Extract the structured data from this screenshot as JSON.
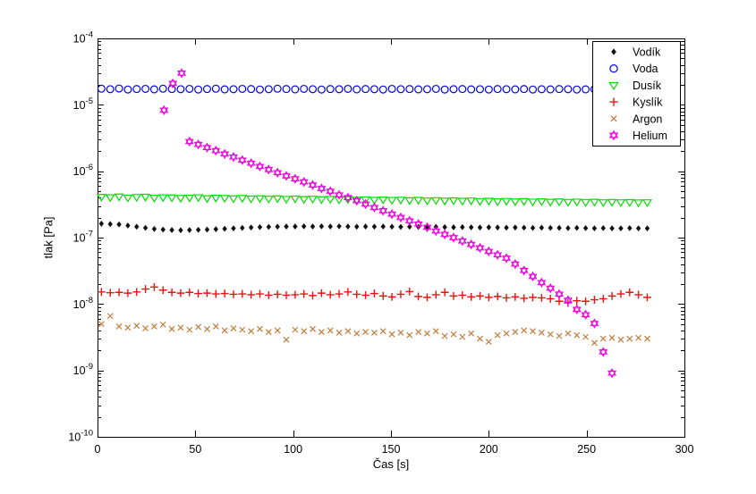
{
  "figure": {
    "background": "#FFFFFF",
    "xlabel": "Čas [s]",
    "ylabel": "tlak [Pa]"
  },
  "chart_data": {
    "type": "scatter",
    "title": "",
    "xlabel": "Čas [s]",
    "ylabel": "tlak [Pa]",
    "grid": false,
    "x_axis": {
      "min": 0,
      "max": 300,
      "ticks": [
        0,
        50,
        100,
        150,
        200,
        250,
        300
      ]
    },
    "y_axis": {
      "scale": "log",
      "min_exp": -10,
      "max_exp": -4,
      "tick_exponents": [
        -4,
        -5,
        -6,
        -7,
        -8,
        -9,
        -10
      ],
      "unit": "Pa"
    },
    "legend": {
      "position": "top-right",
      "border_color": "#000000",
      "background": "#FFFFFF"
    },
    "shared_x": [
      2,
      6.5,
      11,
      15.5,
      20,
      24.5,
      29,
      33.5,
      38,
      42.5,
      47,
      51.5,
      56,
      60.5,
      65,
      69.5,
      74,
      78.5,
      83,
      87.5,
      92,
      96.5,
      101,
      105.5,
      110,
      114.5,
      119,
      123.5,
      128,
      132.5,
      137,
      141.5,
      146,
      150.5,
      155,
      159.5,
      164,
      168.5,
      173,
      177.5,
      182,
      186.5,
      191,
      195.5,
      200,
      204.5,
      209,
      213.5,
      218,
      222.5,
      227,
      231.5,
      236,
      240.5,
      245,
      249.5,
      254,
      258.5,
      263,
      267.5,
      272,
      276.5,
      281
    ],
    "series": [
      {
        "name": "Vodík",
        "marker": "diamond-filled",
        "color": "#111111",
        "x_ref": "shared_x",
        "y": [
          1.62e-07,
          1.6e-07,
          1.58e-07,
          1.52e-07,
          1.46e-07,
          1.4e-07,
          1.35e-07,
          1.32e-07,
          1.3e-07,
          1.29e-07,
          1.3e-07,
          1.31e-07,
          1.32e-07,
          1.34e-07,
          1.36e-07,
          1.38e-07,
          1.4e-07,
          1.42e-07,
          1.44e-07,
          1.45e-07,
          1.46e-07,
          1.47e-07,
          1.47e-07,
          1.48e-07,
          1.47e-07,
          1.48e-07,
          1.47e-07,
          1.48e-07,
          1.47e-07,
          1.46e-07,
          1.47e-07,
          1.46e-07,
          1.47e-07,
          1.46e-07,
          1.45e-07,
          1.46e-07,
          1.45e-07,
          1.44e-07,
          1.45e-07,
          1.44e-07,
          1.43e-07,
          1.44e-07,
          1.43e-07,
          1.42e-07,
          1.43e-07,
          1.42e-07,
          1.41e-07,
          1.42e-07,
          1.41e-07,
          1.4e-07,
          1.41e-07,
          1.4e-07,
          1.4e-07,
          1.39e-07,
          1.4e-07,
          1.39e-07,
          1.38e-07,
          1.39e-07,
          1.38e-07,
          1.38e-07,
          1.39e-07,
          1.38e-07,
          1.38e-07
        ]
      },
      {
        "name": "Voda",
        "marker": "circle",
        "color": "#0000EE",
        "x_ref": "shared_x",
        "y": [
          1.75e-05,
          1.72e-05,
          1.76e-05,
          1.7e-05,
          1.73e-05,
          1.74e-05,
          1.71e-05,
          1.75e-05,
          1.73e-05,
          1.72e-05,
          1.74e-05,
          1.7e-05,
          1.73e-05,
          1.75e-05,
          1.71e-05,
          1.72e-05,
          1.74e-05,
          1.73e-05,
          1.7e-05,
          1.72e-05,
          1.75e-05,
          1.73e-05,
          1.71e-05,
          1.74e-05,
          1.72e-05,
          1.7e-05,
          1.73e-05,
          1.72e-05,
          1.74e-05,
          1.71e-05,
          1.73e-05,
          1.72e-05,
          1.7e-05,
          1.74e-05,
          1.72e-05,
          1.73e-05,
          1.71e-05,
          1.72e-05,
          1.74e-05,
          1.7e-05,
          1.72e-05,
          1.73e-05,
          1.71e-05,
          1.72e-05,
          1.7e-05,
          1.73e-05,
          1.72e-05,
          1.71e-05,
          1.73e-05,
          1.7e-05,
          1.72e-05,
          1.71e-05,
          1.73e-05,
          1.72e-05,
          1.7e-05,
          1.71e-05,
          1.72e-05,
          1.7e-05,
          1.71e-05,
          1.72e-05,
          1.7e-05,
          1.71e-05,
          1.7e-05
        ]
      },
      {
        "name": "Dusík",
        "marker": "triangle-down",
        "color": "#00DD00",
        "x_ref": "shared_x",
        "y": [
          4.1e-07,
          4.05e-07,
          4.15e-07,
          4e-07,
          4.08e-07,
          4.12e-07,
          3.98e-07,
          4.05e-07,
          4.02e-07,
          3.95e-07,
          4e-07,
          4.05e-07,
          3.92e-07,
          3.98e-07,
          3.95e-07,
          3.9e-07,
          3.95e-07,
          3.88e-07,
          3.92e-07,
          3.85e-07,
          3.9e-07,
          3.82e-07,
          3.88e-07,
          3.8e-07,
          3.85e-07,
          3.78e-07,
          3.82e-07,
          3.75e-07,
          3.8e-07,
          3.72e-07,
          3.76e-07,
          3.7e-07,
          3.74e-07,
          3.68e-07,
          3.72e-07,
          3.65e-07,
          3.7e-07,
          3.62e-07,
          3.66e-07,
          3.6e-07,
          3.64e-07,
          3.58e-07,
          3.62e-07,
          3.55e-07,
          3.58e-07,
          3.52e-07,
          3.56e-07,
          3.5e-07,
          3.54e-07,
          3.48e-07,
          3.52e-07,
          3.46e-07,
          3.5e-07,
          3.44e-07,
          3.48e-07,
          3.42e-07,
          3.46e-07,
          3.4e-07,
          3.44e-07,
          3.4e-07,
          3.42e-07,
          3.38e-07,
          3.4e-07
        ]
      },
      {
        "name": "Kyslík",
        "marker": "plus",
        "color": "#EE1111",
        "x_ref": "shared_x",
        "y": [
          1.52e-08,
          1.48e-08,
          1.5e-08,
          1.46e-08,
          1.52e-08,
          1.68e-08,
          1.8e-08,
          1.62e-08,
          1.5e-08,
          1.46e-08,
          1.5e-08,
          1.44e-08,
          1.46e-08,
          1.42e-08,
          1.44e-08,
          1.4e-08,
          1.42e-08,
          1.38e-08,
          1.42e-08,
          1.36e-08,
          1.4e-08,
          1.36e-08,
          1.38e-08,
          1.42e-08,
          1.34e-08,
          1.46e-08,
          1.38e-08,
          1.42e-08,
          1.52e-08,
          1.4e-08,
          1.36e-08,
          1.44e-08,
          1.32e-08,
          1.28e-08,
          1.4e-08,
          1.54e-08,
          1.3e-08,
          1.26e-08,
          1.38e-08,
          1.5e-08,
          1.32e-08,
          1.36e-08,
          1.28e-08,
          1.32e-08,
          1.26e-08,
          1.3e-08,
          1.24e-08,
          1.28e-08,
          1.22e-08,
          1.26e-08,
          1.24e-08,
          1.2e-08,
          1.1e-08,
          1.04e-08,
          1.12e-08,
          1.1e-08,
          1.16e-08,
          1.2e-08,
          1.32e-08,
          1.42e-08,
          1.5e-08,
          1.38e-08,
          1.26e-08
        ]
      },
      {
        "name": "Argon",
        "marker": "x",
        "color": "#C17C3C",
        "x_ref": "shared_x",
        "y": [
          5e-09,
          6.6e-09,
          4.6e-09,
          4.4e-09,
          4.7e-09,
          4.3e-09,
          4.6e-09,
          4.9e-09,
          4.2e-09,
          4.4e-09,
          4.1e-09,
          4.5e-09,
          4.2e-09,
          4.6e-09,
          4e-09,
          4.3e-09,
          4.1e-09,
          3.9e-09,
          4.2e-09,
          3.8e-09,
          4e-09,
          2.9e-09,
          4.1e-09,
          3.9e-09,
          4.2e-09,
          3.8e-09,
          4e-09,
          3.7e-09,
          3.9e-09,
          3.6e-09,
          3.8e-09,
          3.7e-09,
          3.9e-09,
          3.5e-09,
          3.7e-09,
          3.4e-09,
          3.8e-09,
          3.6e-09,
          3.9e-09,
          3.3e-09,
          3.5e-09,
          3.2e-09,
          3.6e-09,
          3e-09,
          2.7e-09,
          3.4e-09,
          3.6e-09,
          3.8e-09,
          4e-09,
          3.9e-09,
          3.7e-09,
          3.5e-09,
          3.3e-09,
          3.6e-09,
          3.4e-09,
          3.2e-09,
          2.6e-09,
          3e-09,
          3.1e-09,
          2.9e-09,
          3e-09,
          3.1e-09,
          3e-09
        ]
      },
      {
        "name": "Helium",
        "marker": "hexagram",
        "color": "#EE00DD",
        "x": [
          34,
          38.5,
          43,
          47,
          51.5,
          56,
          60.5,
          65,
          69.5,
          74,
          78.5,
          83,
          87.5,
          92,
          96.5,
          101,
          105.5,
          110,
          114.5,
          119,
          123.5,
          128,
          132.5,
          137,
          141.5,
          146,
          150.5,
          155,
          159.5,
          164,
          168.5,
          173,
          177.5,
          182,
          186.5,
          191,
          195.5,
          200,
          204.5,
          209,
          213.5,
          218,
          222.5,
          227,
          231.5,
          236,
          240.5,
          245,
          249.5,
          254,
          258.5,
          263
        ],
        "y": [
          8.3e-06,
          2.1e-05,
          3e-05,
          2.8e-06,
          2.53e-06,
          2.27e-06,
          2.04e-06,
          1.82e-06,
          1.64e-06,
          1.47e-06,
          1.32e-06,
          1.18e-06,
          1.06e-06,
          9.5e-07,
          8.5e-07,
          7.7e-07,
          6.9e-07,
          6.2e-07,
          5.5e-07,
          5e-07,
          4.4e-07,
          4e-07,
          3.6e-07,
          3.2e-07,
          2.84e-07,
          2.54e-07,
          2.26e-07,
          2.01e-07,
          1.79e-07,
          1.6e-07,
          1.43e-07,
          1.26e-07,
          1.12e-07,
          1e-07,
          8.9e-08,
          7.9e-08,
          7e-08,
          6.2e-08,
          5.5e-08,
          4.9e-08,
          4e-08,
          3.2e-08,
          2.6e-08,
          2.1e-08,
          1.73e-08,
          1.41e-08,
          1.14e-08,
          8.3e-09,
          6.9e-09,
          5.1e-09,
          1.9e-09,
          9.1e-10
        ]
      }
    ]
  }
}
